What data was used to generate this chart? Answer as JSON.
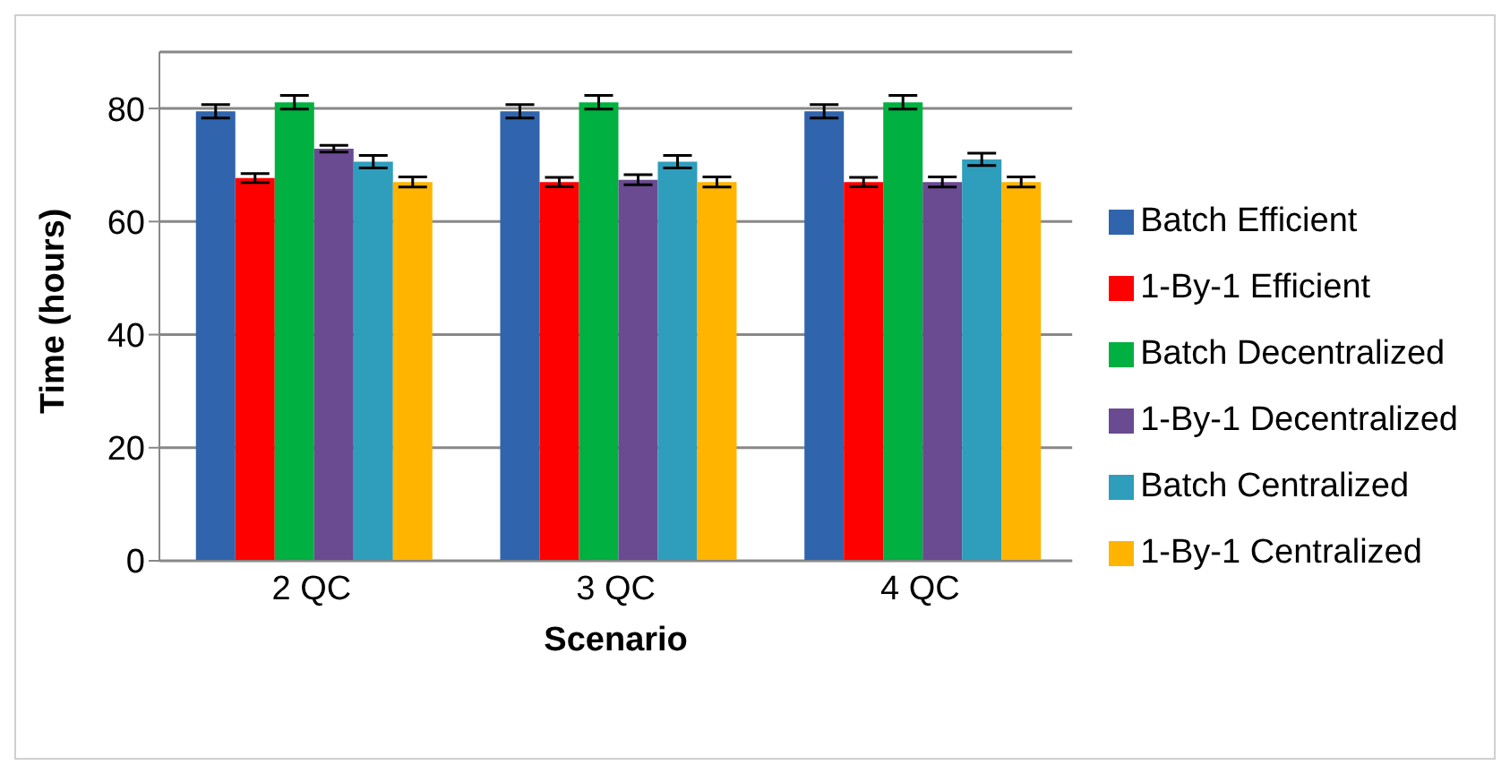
{
  "chart_data": {
    "type": "bar",
    "xlabel": "Scenario",
    "ylabel": "Time (hours)",
    "categories": [
      "2 QC",
      "3 QC",
      "4 QC"
    ],
    "series": [
      {
        "name": "Batch Efficient",
        "color": "#3064ac",
        "values": [
          79.5,
          79.5,
          79.5
        ],
        "errors": [
          1.2,
          1.2,
          1.2
        ]
      },
      {
        "name": "1-By-1 Efficient",
        "color": "#ff0000",
        "values": [
          67.7,
          67,
          67
        ],
        "errors": [
          0.8,
          0.8,
          0.8
        ]
      },
      {
        "name": "Batch Decentralized",
        "color": "#00b040",
        "values": [
          81.1,
          81.1,
          81.1
        ],
        "errors": [
          1.2,
          1.2,
          1.2
        ]
      },
      {
        "name": "1-By-1 Decentralized",
        "color": "#6a4a90",
        "values": [
          72.9,
          67.4,
          67
        ],
        "errors": [
          0.6,
          0.9,
          0.9
        ]
      },
      {
        "name": "Batch Centralized",
        "color": "#2f9dbc",
        "values": [
          70.6,
          70.6,
          71
        ],
        "errors": [
          1.1,
          1.1,
          1.1
        ]
      },
      {
        "name": "1-By-1 Centralized",
        "color": "#ffb400",
        "values": [
          67,
          67,
          67
        ],
        "errors": [
          0.9,
          0.9,
          0.9
        ]
      }
    ],
    "ylim": [
      0,
      90
    ],
    "yticks": [
      0,
      20,
      40,
      60,
      80
    ],
    "grid": "y",
    "legend": "right"
  }
}
